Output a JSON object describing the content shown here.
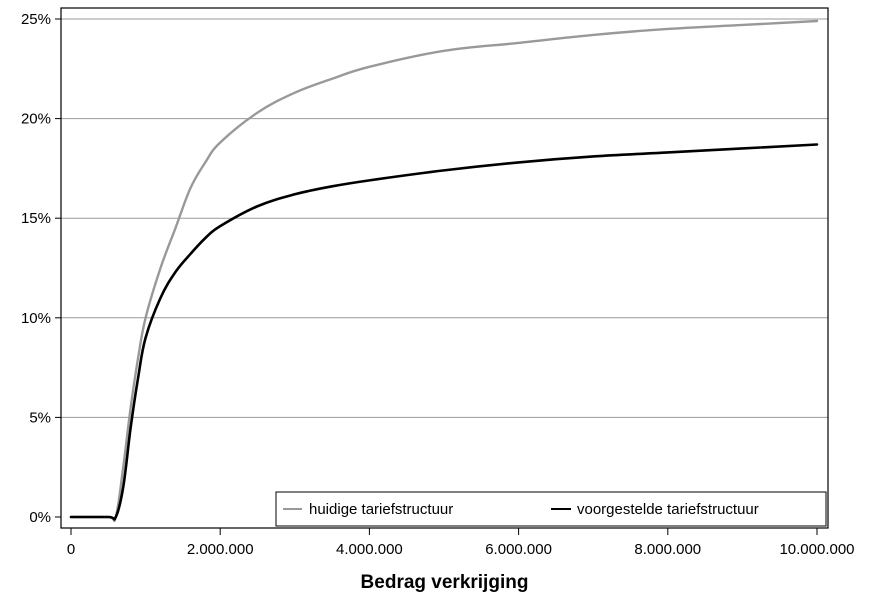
{
  "chart_data": {
    "type": "line",
    "xlabel": "Bedrag verkrijging",
    "ylabel": "",
    "xlim": [
      0,
      10000000
    ],
    "ylim": [
      0,
      25
    ],
    "x_ticks": [
      0,
      2000000,
      4000000,
      6000000,
      8000000,
      10000000
    ],
    "x_tick_labels": [
      "0",
      "2.000.000",
      "4.000.000",
      "6.000.000",
      "8.000.000",
      "10.000.000"
    ],
    "y_ticks": [
      0,
      5,
      10,
      15,
      20,
      25
    ],
    "y_tick_labels": [
      "0%",
      "5%",
      "10%",
      "15%",
      "20%",
      "25%"
    ],
    "grid": "horizontal",
    "legend_position": "bottom-right",
    "x": [
      0,
      500000,
      600000,
      700000,
      800000,
      900000,
      1000000,
      1200000,
      1400000,
      1600000,
      1800000,
      2000000,
      2500000,
      3000000,
      3500000,
      4000000,
      5000000,
      6000000,
      7000000,
      8000000,
      9000000,
      10000000
    ],
    "series": [
      {
        "name": "huidige tariefstructuur",
        "color": "#999999",
        "values": [
          0,
          0,
          0,
          2.5,
          5.5,
          8.0,
          10.0,
          12.5,
          14.5,
          16.5,
          17.8,
          18.8,
          20.3,
          21.3,
          22.0,
          22.6,
          23.4,
          23.8,
          24.2,
          24.5,
          24.7,
          24.9
        ]
      },
      {
        "name": "voorgestelde tariefstructuur",
        "color": "#000000",
        "values": [
          0,
          0,
          0,
          1.5,
          4.5,
          7.0,
          9.0,
          11.0,
          12.3,
          13.2,
          14.0,
          14.6,
          15.6,
          16.2,
          16.6,
          16.9,
          17.4,
          17.8,
          18.1,
          18.3,
          18.5,
          18.7
        ]
      }
    ]
  }
}
